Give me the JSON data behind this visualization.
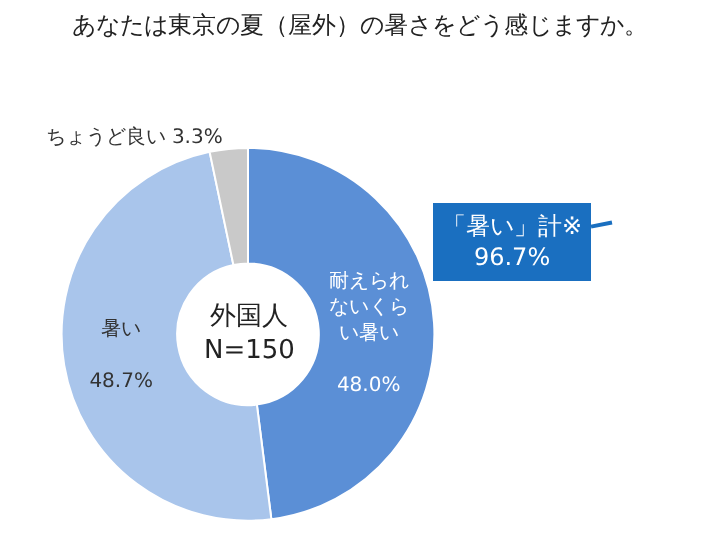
{
  "chart_data": {
    "type": "donut",
    "title": "あなたは東京の夏（屋外）の暑さをどう感じますか。",
    "categories": [
      "耐えられないくらい暑い",
      "暑い",
      "ちょうど良い"
    ],
    "values": [
      48.0,
      48.7,
      3.3
    ],
    "value_labels": [
      "48.0%",
      "48.7%",
      "3.3%"
    ],
    "colors": [
      "#5b8fd6",
      "#a9c5eb",
      "#c9c9c9"
    ],
    "annotations": [
      "外国人\nN=150",
      "「暑い」計※\n96.7%"
    ],
    "legend": false
  }
}
